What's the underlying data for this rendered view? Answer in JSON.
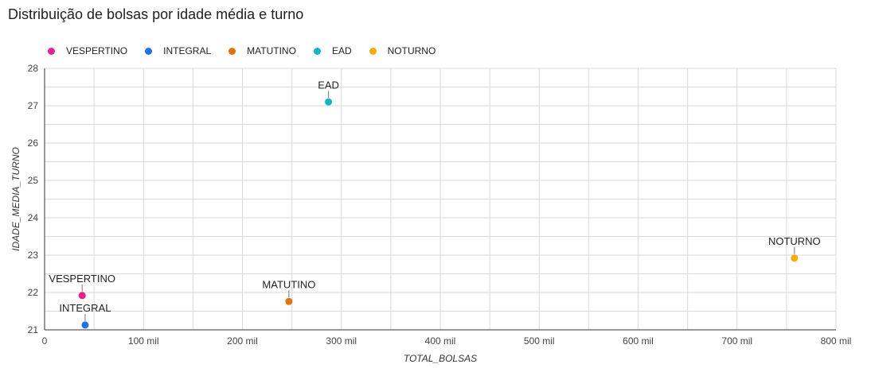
{
  "title": "Distribuição de bolsas por idade média e turno",
  "chart_data": {
    "type": "scatter",
    "title": "Distribuição de bolsas por idade média e turno",
    "xlabel": "TOTAL_BOLSAS",
    "ylabel": "IDADE_MEDIA_TURNO",
    "xlim": [
      0,
      800000
    ],
    "ylim": [
      21,
      28
    ],
    "x_ticks": [
      0,
      100000,
      200000,
      300000,
      400000,
      500000,
      600000,
      700000,
      800000
    ],
    "x_tick_labels": [
      "0",
      "100 mil",
      "200 mil",
      "300 mil",
      "400 mil",
      "500 mil",
      "600 mil",
      "700 mil",
      "800 mil"
    ],
    "y_ticks": [
      21,
      22,
      23,
      24,
      25,
      26,
      27,
      28
    ],
    "y_tick_labels": [
      "21",
      "22",
      "23",
      "24",
      "25",
      "26",
      "27",
      "28"
    ],
    "grid": true,
    "legend_position": "top-left",
    "series": [
      {
        "name": "VESPERTINO",
        "color": "#e91e8c",
        "x": 38000,
        "y": 21.92,
        "label": "VESPERTINO"
      },
      {
        "name": "INTEGRAL",
        "color": "#1a73e8",
        "x": 41000,
        "y": 21.13,
        "label": "INTEGRAL"
      },
      {
        "name": "MATUTINO",
        "color": "#e8710a",
        "x": 247000,
        "y": 21.76,
        "label": "MATUTINO"
      },
      {
        "name": "EAD",
        "color": "#12b5cb",
        "x": 287000,
        "y": 27.1,
        "label": "EAD"
      },
      {
        "name": "NOTURNO",
        "color": "#f9ab00",
        "x": 758000,
        "y": 22.92,
        "label": "NOTURNO"
      }
    ]
  }
}
